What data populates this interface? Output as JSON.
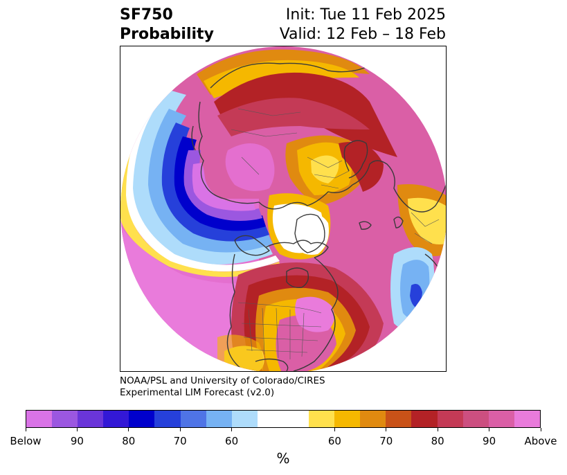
{
  "header": {
    "variable": "SF750",
    "product": "Probability",
    "init": "Init: Tue 11 Feb 2025",
    "valid": "Valid: 12 Feb – 18 Feb"
  },
  "credit": {
    "line1": "NOAA/PSL and University of Colorado/CIRES",
    "line2": "Experimental LIM Forecast (v2.0)"
  },
  "colorbar": {
    "colors": [
      "#d973e6",
      "#9b57e0",
      "#6a35d9",
      "#3318d6",
      "#0000cc",
      "#2640da",
      "#4f74e6",
      "#76b2f3",
      "#aedcfb",
      "#ffffff",
      "#ffffff",
      "#ffe04d",
      "#f5b800",
      "#e08a10",
      "#c95218",
      "#b32226",
      "#c43a56",
      "#cc4f80",
      "#da5fa6",
      "#e97bdb"
    ],
    "ticks": [
      "Below",
      "90",
      "80",
      "70",
      "60",
      "60",
      "70",
      "80",
      "90",
      "Above"
    ],
    "units": "%"
  },
  "map": {
    "projection": "north-polar-stereographic",
    "palette": {
      "below_extreme": "#d973e6",
      "below_strong": "#9b57e0",
      "below_mid": "#3318d6",
      "below_core": "#0000cc",
      "below_weak": "#4f74e6",
      "below_light": "#aedcfb",
      "neutral": "#ffffff",
      "above_light": "#ffe04d",
      "above_weak": "#f5b800",
      "above_orange": "#e08a10",
      "above_red": "#b32226",
      "above_rose": "#c43a56",
      "above_pink": "#da5fa6",
      "above_extreme": "#e97bdb",
      "coastline": "#3a3a3a"
    }
  }
}
